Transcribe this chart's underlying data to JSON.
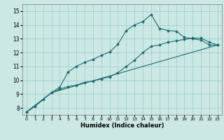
{
  "title": "",
  "xlabel": "Humidex (Indice chaleur)",
  "xlim": [
    -0.5,
    23.5
  ],
  "ylim": [
    7.5,
    15.5
  ],
  "yticks": [
    8,
    9,
    10,
    11,
    12,
    13,
    14,
    15
  ],
  "xticks": [
    0,
    1,
    2,
    3,
    4,
    5,
    6,
    7,
    8,
    9,
    10,
    11,
    12,
    13,
    14,
    15,
    16,
    17,
    18,
    19,
    20,
    21,
    22,
    23
  ],
  "bg_color": "#cce8e4",
  "grid_color": "#99cccc",
  "line_color": "#1a6e6e",
  "line1_x": [
    0,
    1,
    2,
    3,
    4,
    5,
    6,
    7,
    8,
    9,
    10,
    11,
    12,
    13,
    14,
    15,
    16,
    17,
    18,
    19,
    20,
    21,
    22,
    23
  ],
  "line1_y": [
    7.7,
    8.1,
    8.6,
    9.1,
    9.5,
    10.6,
    11.0,
    11.3,
    11.5,
    11.8,
    12.05,
    12.6,
    13.6,
    14.0,
    14.25,
    14.75,
    13.75,
    13.6,
    13.55,
    13.1,
    13.0,
    12.9,
    12.55,
    12.55
  ],
  "line2_x": [
    0,
    3,
    4,
    5,
    6,
    7,
    8,
    9,
    10,
    11,
    12,
    13,
    14,
    15,
    16,
    17,
    18,
    19,
    20,
    21,
    22,
    23
  ],
  "line2_y": [
    7.7,
    9.1,
    9.35,
    9.55,
    9.65,
    9.85,
    9.95,
    10.1,
    10.25,
    10.55,
    11.0,
    11.45,
    12.0,
    12.45,
    12.55,
    12.75,
    12.85,
    12.95,
    13.05,
    13.05,
    12.75,
    12.55
  ],
  "line3_x": [
    0,
    3,
    23
  ],
  "line3_y": [
    7.7,
    9.1,
    12.55
  ]
}
